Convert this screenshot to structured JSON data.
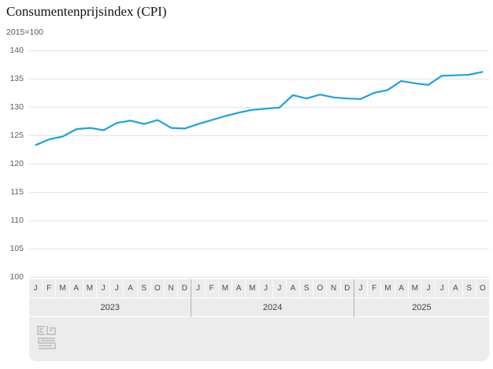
{
  "title": "Consumentenprijsindex (CPI)",
  "subtitle": "2015=100",
  "colors": {
    "line": "#1aa3dc",
    "band_background": "#ececec",
    "gridline": "#e3e3e3",
    "axis_text": "#5f5f5f",
    "title_text": "#121212",
    "logo": "#b8b8b8"
  },
  "chart_data": {
    "type": "line",
    "title": "Consumentenprijsindex (CPI)",
    "subtitle": "2015=100",
    "ylim": [
      100,
      140
    ],
    "yticks": [
      140,
      135,
      130,
      125,
      120,
      115,
      110,
      105,
      100
    ],
    "grid": "horizontal",
    "legend": "none",
    "x_axis": {
      "years": [
        {
          "label": "2023",
          "months": [
            "J",
            "F",
            "M",
            "A",
            "M",
            "J",
            "J",
            "A",
            "S",
            "O",
            "N",
            "D"
          ]
        },
        {
          "label": "2024",
          "months": [
            "J",
            "F",
            "M",
            "A",
            "M",
            "J",
            "J",
            "A",
            "S",
            "O",
            "N",
            "D"
          ]
        },
        {
          "label": "2025",
          "months": [
            "J",
            "F",
            "M",
            "A",
            "M",
            "J",
            "J",
            "A",
            "S",
            "O"
          ]
        }
      ]
    },
    "series": [
      {
        "name": "CPI",
        "color": "#1aa3dc",
        "values": [
          123.3,
          124.3,
          124.8,
          126.1,
          126.3,
          125.9,
          127.2,
          127.6,
          127.0,
          127.7,
          126.3,
          126.2,
          127.0,
          127.7,
          128.4,
          129.0,
          129.5,
          129.7,
          129.9,
          132.1,
          131.5,
          132.2,
          131.7,
          131.5,
          131.4,
          132.5,
          133.0,
          134.6,
          134.2,
          133.9,
          135.5,
          135.6,
          135.7,
          136.2
        ]
      }
    ]
  },
  "footer": {
    "logo_name": "cbs-logo"
  }
}
